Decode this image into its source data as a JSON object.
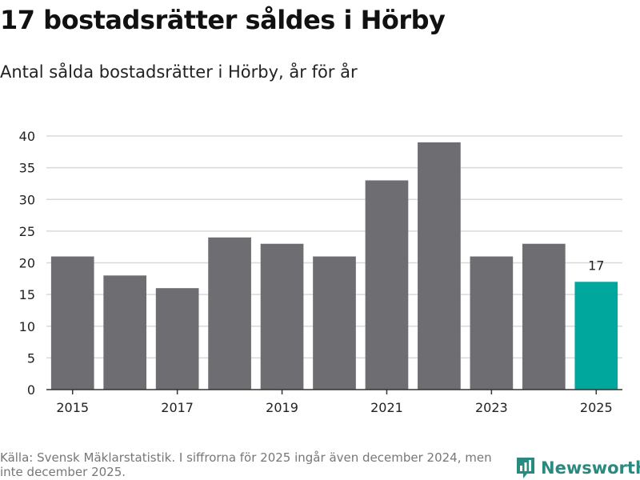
{
  "title": "17 bostadsrätter såldes i Hörby",
  "subtitle": "Antal sålda bostadsrätter i Hörby, år för år",
  "footer": {
    "source": "Källa: Svensk Mäklarstatistik. I siffrorna för 2025 ingår även december 2024, men inte december 2025."
  },
  "logo": {
    "text": "Newsworthy",
    "icon": "newsworthy-logo-icon"
  },
  "colors": {
    "bar": "#6e6d72",
    "highlight": "#00a79d",
    "grid": "#d9d9d9",
    "axis": "#333333",
    "text": "#222222"
  },
  "chart_data": {
    "type": "bar",
    "categories": [
      "2015",
      "2016",
      "2017",
      "2018",
      "2019",
      "2020",
      "2021",
      "2022",
      "2023",
      "2024",
      "2025"
    ],
    "values": [
      21,
      18,
      16,
      24,
      23,
      21,
      33,
      39,
      21,
      23,
      17
    ],
    "highlight_index": 10,
    "data_labels": [
      {
        "index": 10,
        "text": "17"
      }
    ],
    "xtick_labels": [
      "2015",
      "2017",
      "2019",
      "2021",
      "2023",
      "2025"
    ],
    "yticks": [
      0,
      5,
      10,
      15,
      20,
      25,
      30,
      35,
      40
    ],
    "ylim": [
      0,
      40
    ],
    "grid": true,
    "title": "17 bostadsrätter såldes i Hörby",
    "subtitle": "Antal sålda bostadsrätter i Hörby, år för år",
    "xlabel": "",
    "ylabel": ""
  }
}
